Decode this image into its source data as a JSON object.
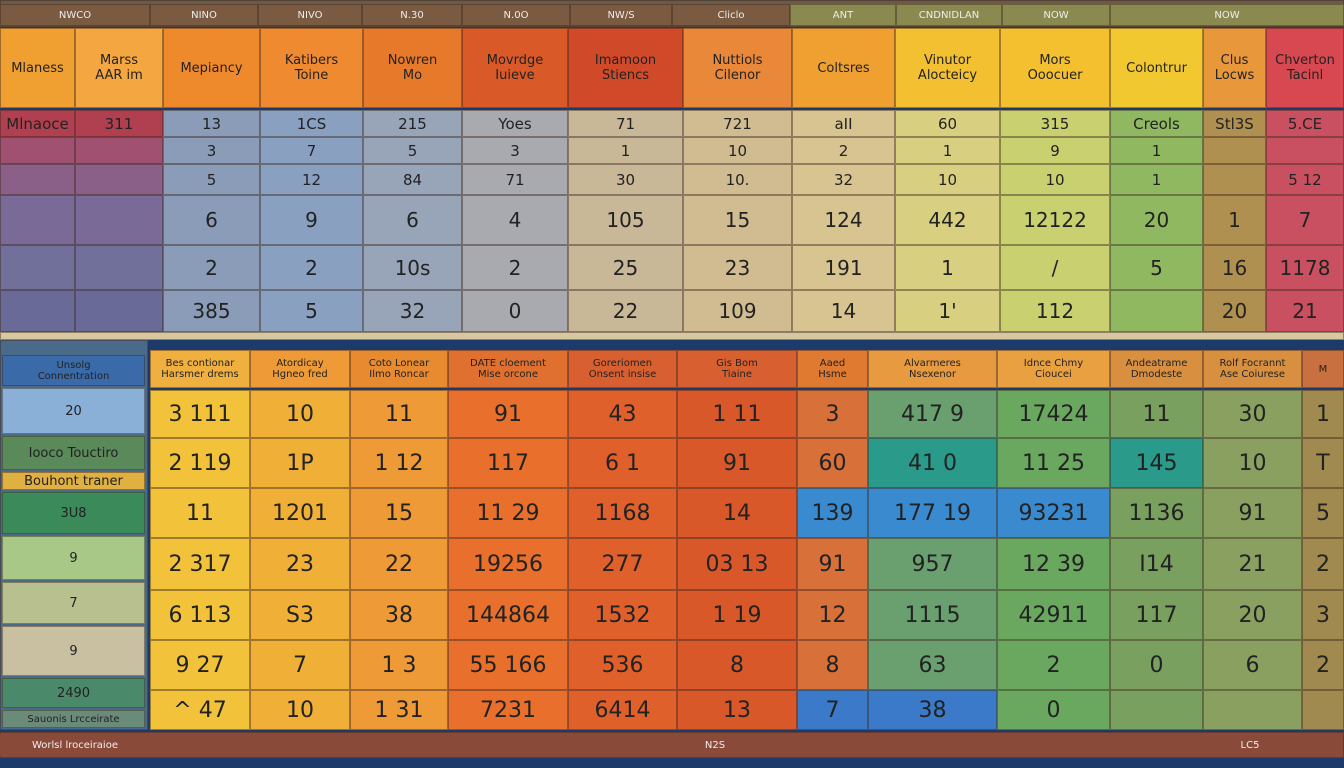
{
  "top": {
    "strip": [
      "NWCO",
      "NINO",
      "NIVO",
      "N.30",
      "N.0O",
      "NW/S",
      "Cliclo",
      "ANT",
      "CNDNIDLAN",
      "NOW",
      "NOW"
    ],
    "headers": [
      "Mlaness",
      "Marss\nAAR im",
      "Mepiancy",
      "Katibers\nToine",
      "Nowren\nMo",
      "Movrdge\nIuieve",
      "Imamoon\nStiencs",
      "Nuttiols\nCilenor",
      "Coltsres",
      "Vinutor\nAlocteicy",
      "Mors\nOoocuer",
      "Colontrur",
      "Clus\nLocws",
      "Chverton\nTacinl"
    ],
    "rows": [
      [
        "Mlnaoce",
        "311",
        "13",
        "1CS",
        "215",
        "Yoes",
        "71",
        "721",
        "aII",
        "60",
        "315",
        "Creols",
        "Stl3S",
        "5.CE"
      ],
      [
        null,
        null,
        "3",
        "7",
        "5",
        "3",
        "1",
        "10",
        "2",
        "1",
        "9",
        "1",
        null,
        null
      ],
      [
        null,
        null,
        "5",
        "12",
        "84",
        "71",
        "30",
        "10.",
        "32",
        "10",
        "10",
        "1",
        null,
        "5 12"
      ],
      [
        null,
        null,
        "6",
        "9",
        "6",
        "4",
        "105",
        "15",
        "124",
        "442",
        "12122",
        "20",
        "1",
        "7"
      ],
      [
        null,
        null,
        "2",
        "2",
        "10s",
        "2",
        "25",
        "23",
        "191",
        "1",
        "/",
        "5",
        "16",
        "1178"
      ],
      [
        null,
        null,
        "385",
        "5",
        "32",
        "0",
        "22",
        "109",
        "14",
        "1'",
        "112",
        null,
        "20",
        "21"
      ]
    ]
  },
  "bottom": {
    "side": [
      "Unsolg\nConnentration",
      "20",
      "Iooco Touctiro",
      "Bouhont traner",
      "3U8",
      "9",
      "7",
      "9",
      "2490",
      "Sauonis Lrcceirate"
    ],
    "headers": [
      "Bes contionar\nHarsmer drems",
      "Atordicay\nHgneo fred",
      "Coto Lonear\nIlmo Roncar",
      "DATE cloement\nMise orcone",
      "Goreriomen\nOnsent insise",
      "Gis Bom\nTiaine",
      "Aaed\nHsme",
      "Alvarmeres\nNsexenor",
      "Idnce Chmy\nCioucei",
      "Andeatrame\nDmodeste",
      "Rolf Focrannt\nAse Coiurese",
      "M"
    ],
    "rows": [
      [
        "3 111",
        "10",
        "11",
        "91",
        "43",
        "1 11",
        "3",
        "417 9",
        "17424",
        "11",
        "30",
        "1"
      ],
      [
        "2 119",
        "1P",
        "1 12",
        "117",
        "6 1",
        "91",
        "60",
        "41 0",
        "11 25",
        "145",
        "10",
        "T"
      ],
      [
        "11",
        "1201",
        "15",
        "11 29",
        "1168",
        "14",
        "139",
        "177 19",
        "93231",
        "1136",
        "91",
        "5"
      ],
      [
        "2 317",
        "23",
        "22",
        "19256",
        "277",
        "03 13",
        "91",
        "957",
        "12 39",
        "I14",
        "21",
        "2"
      ],
      [
        "6 113",
        "S3",
        "38",
        "144864",
        "1532",
        "1 19",
        "12",
        "1115",
        "42911",
        "117",
        "20",
        "3"
      ],
      [
        "9 27",
        "7",
        "1 3",
        "55 166",
        "536",
        "8",
        "8",
        "63",
        "2",
        "0",
        "6",
        "2"
      ],
      [
        "^ 47",
        "10",
        "1 31",
        "7231",
        "6414",
        "13",
        "7",
        "38",
        "0",
        null,
        null,
        null
      ]
    ]
  },
  "footer": [
    "Worlsl lroceiraioe",
    "N2S",
    "LC5"
  ]
}
